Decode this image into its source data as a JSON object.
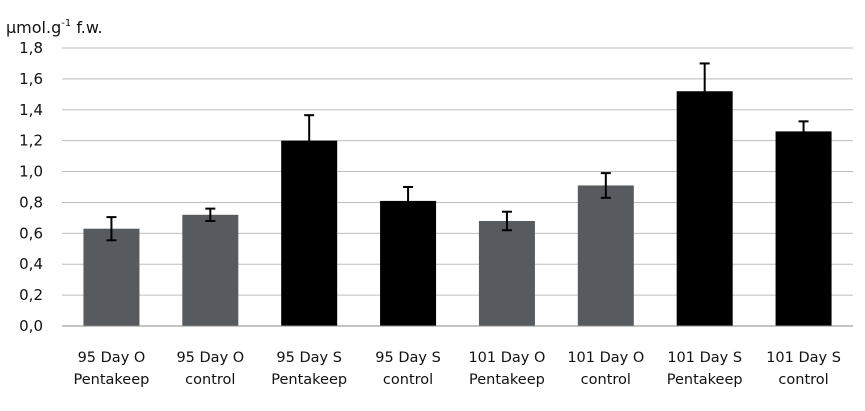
{
  "chart_data": {
    "type": "bar",
    "ylabel": "μmol.g-1 f.w.",
    "ylabel_parts": {
      "main": "μmol.g",
      "sup": "-1",
      "tail": " f.w."
    },
    "ylim": [
      0.0,
      1.8
    ],
    "yticks": [
      "0,0",
      "0,2",
      "0,4",
      "0,6",
      "0,8",
      "1,0",
      "1,2",
      "1,4",
      "1,6",
      "1,8"
    ],
    "ytick_values": [
      0,
      0.2,
      0.4,
      0.6,
      0.8,
      1.0,
      1.2,
      1.4,
      1.6,
      1.8
    ],
    "grid": true,
    "categories": [
      [
        "95 Day O",
        "Pentakeep"
      ],
      [
        "95 Day O",
        "control"
      ],
      [
        "95 Day S",
        "Pentakeep"
      ],
      [
        "95 Day S",
        "control"
      ],
      [
        "101 Day O",
        "Pentakeep"
      ],
      [
        "101 Day O",
        "control"
      ],
      [
        "101 Day S",
        "Pentakeep"
      ],
      [
        "101 Day S",
        "control"
      ]
    ],
    "values": [
      0.63,
      0.72,
      1.2,
      0.81,
      0.68,
      0.91,
      1.52,
      1.26
    ],
    "errors": [
      0.075,
      0.04,
      0.165,
      0.09,
      0.06,
      0.08,
      0.18,
      0.065
    ],
    "colors": [
      "#575a5f",
      "#575a5f",
      "#000000",
      "#000000",
      "#575a5f",
      "#575a5f",
      "#000000",
      "#000000"
    ]
  }
}
